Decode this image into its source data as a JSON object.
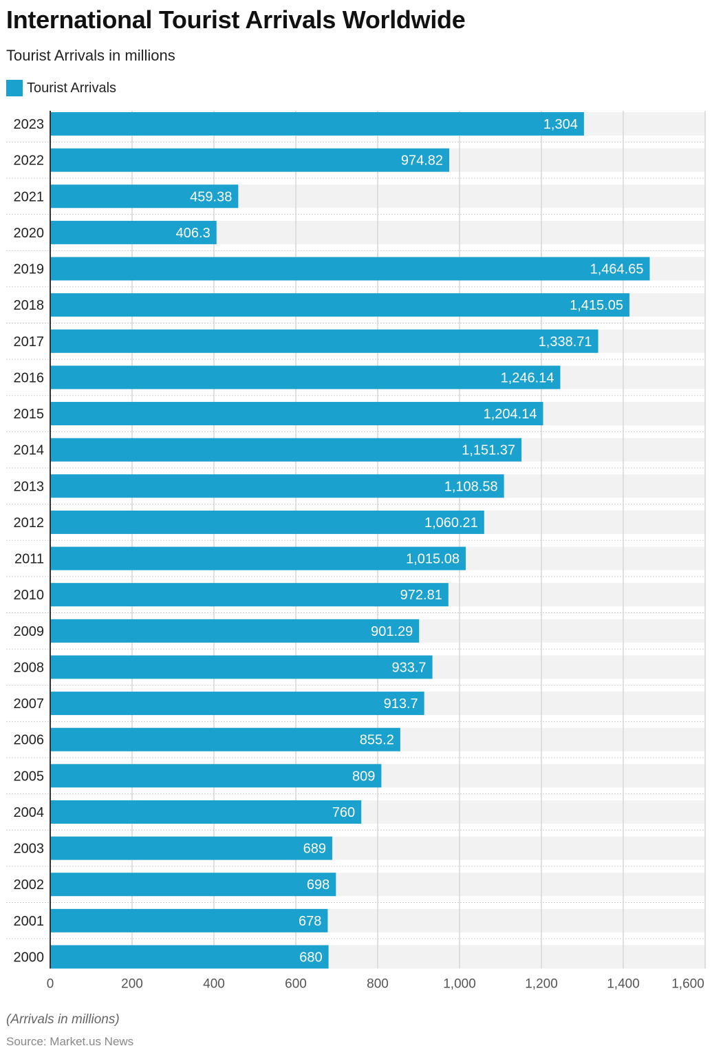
{
  "chart_data": {
    "type": "bar",
    "orientation": "horizontal",
    "title": "International Tourist Arrivals Worldwide",
    "subtitle": "Tourist Arrivals in millions",
    "categories": [
      "2023",
      "2022",
      "2021",
      "2020",
      "2019",
      "2018",
      "2017",
      "2016",
      "2015",
      "2014",
      "2013",
      "2012",
      "2011",
      "2010",
      "2009",
      "2008",
      "2007",
      "2006",
      "2005",
      "2004",
      "2003",
      "2002",
      "2001",
      "2000"
    ],
    "series": [
      {
        "name": "Tourist Arrivals",
        "values": [
          1304,
          974.82,
          459.38,
          406.3,
          1464.65,
          1415.05,
          1338.71,
          1246.14,
          1204.14,
          1151.37,
          1108.58,
          1060.21,
          1015.08,
          972.81,
          901.29,
          933.7,
          913.7,
          855.2,
          809,
          760,
          689,
          698,
          678,
          680
        ],
        "labels": [
          "1,304",
          "974.82",
          "459.38",
          "406.3",
          "1,464.65",
          "1,415.05",
          "1,338.71",
          "1,246.14",
          "1,204.14",
          "1,151.37",
          "1,108.58",
          "1,060.21",
          "1,015.08",
          "972.81",
          "901.29",
          "933.7",
          "913.7",
          "855.2",
          "809",
          "760",
          "689",
          "698",
          "678",
          "680"
        ]
      }
    ],
    "xlim": [
      0,
      1600
    ],
    "xticks": [
      0,
      200,
      400,
      600,
      800,
      1000,
      1200,
      1400,
      1600
    ],
    "xtick_labels": [
      "0",
      "200",
      "400",
      "600",
      "800",
      "1,000",
      "1,200",
      "1,400",
      "1,600"
    ],
    "grid": true,
    "legend_position": "top-left",
    "note": "(Arrivals in millions)",
    "source": "Source: Market.us News",
    "colors": {
      "bar": "#1aa1ce",
      "band": "#f2f2f2",
      "grid": "#d6d6d6"
    }
  }
}
